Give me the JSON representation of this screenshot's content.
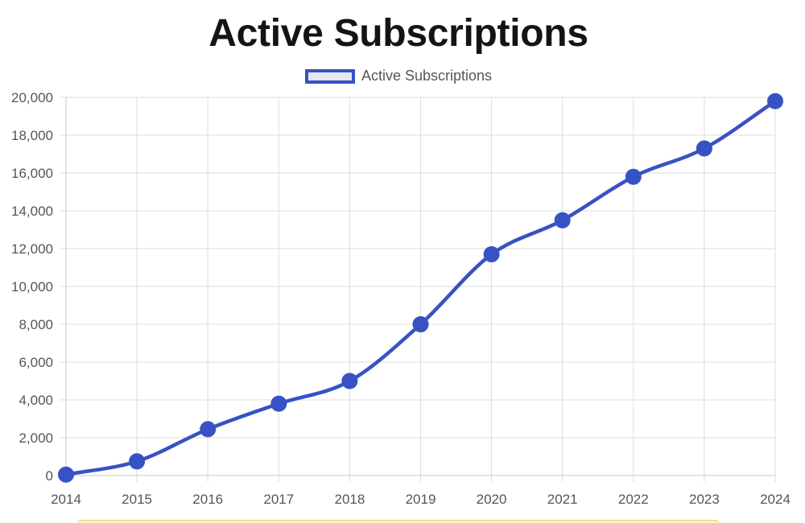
{
  "chart_data": {
    "type": "line",
    "title": "Active Subscriptions",
    "categories": [
      "2014",
      "2015",
      "2016",
      "2017",
      "2018",
      "2019",
      "2020",
      "2021",
      "2022",
      "2023",
      "2024"
    ],
    "series": [
      {
        "name": "Active Subscriptions",
        "values": [
          50,
          750,
          2450,
          3800,
          5000,
          8000,
          11700,
          13500,
          15800,
          17300,
          19800
        ]
      }
    ],
    "xlabel": "",
    "ylabel": "",
    "ylim": [
      0,
      20000
    ],
    "yticks": [
      0,
      2000,
      4000,
      6000,
      8000,
      10000,
      12000,
      14000,
      16000,
      18000,
      20000
    ],
    "ytick_labels": [
      "0",
      "2,000",
      "4,000",
      "6,000",
      "8,000",
      "10,000",
      "12,000",
      "14,000",
      "16,000",
      "18,000",
      "20,000"
    ],
    "grid": true,
    "legend_position": "top-center"
  },
  "colors": {
    "line": "#3752c4",
    "point": "#3752c4",
    "grid": "#dddddd",
    "legend_fill": "#e7e7ef"
  }
}
